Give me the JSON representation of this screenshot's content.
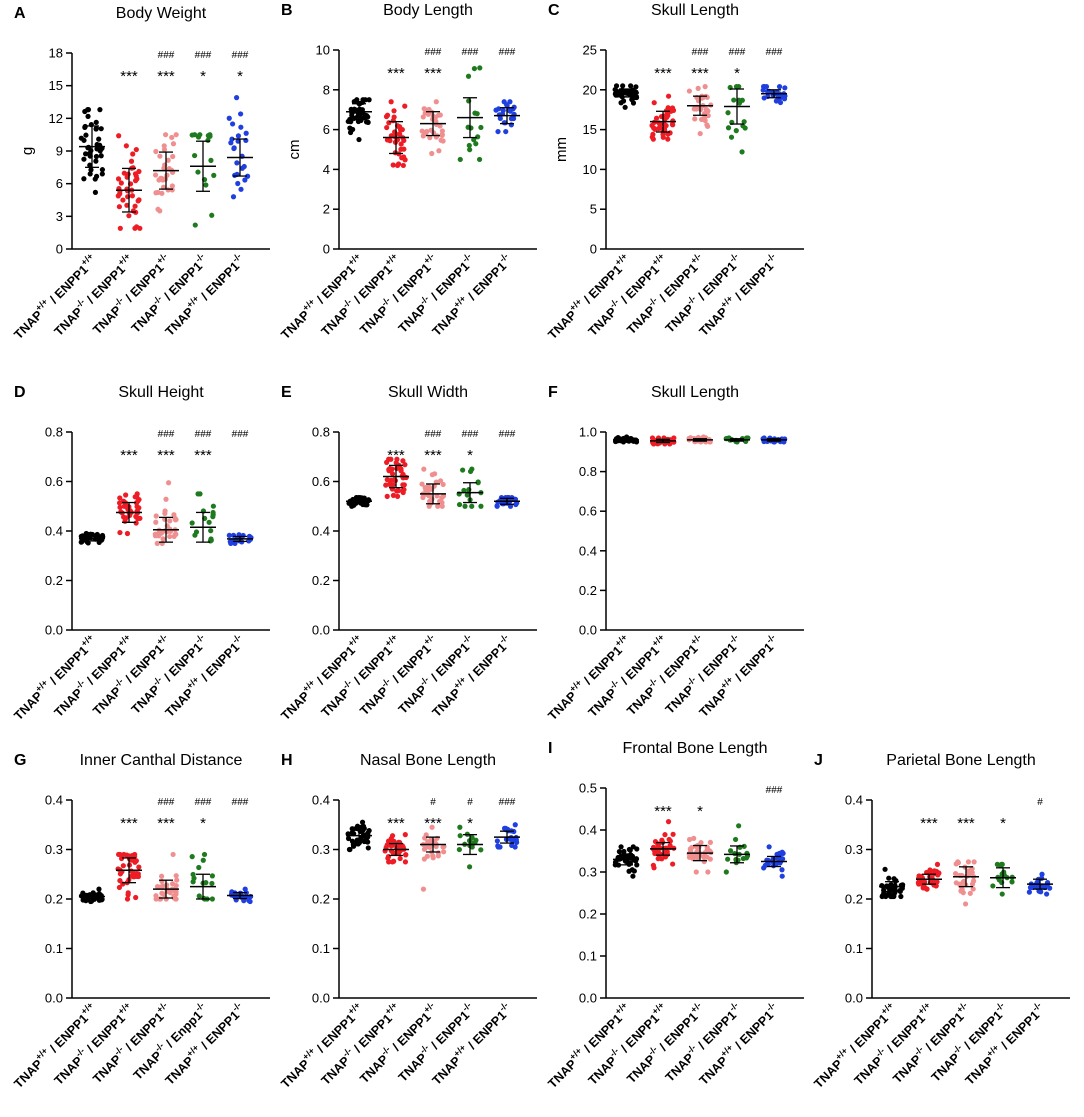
{
  "figure": {
    "group_colors": [
      "#000000",
      "#ee1c24",
      "#f08f8f",
      "#1f7a1f",
      "#1f3fe0"
    ],
    "group_labels": [
      {
        "base": "TNAP",
        "sup1": "+/+",
        "mid": "/ ENPP1",
        "sup2": "+/+"
      },
      {
        "base": "TNAP",
        "sup1": "-/-",
        "mid": "/ ENPP1",
        "sup2": "+/+"
      },
      {
        "base": "TNAP",
        "sup1": "-/-",
        "mid": "/ ENPP1",
        "sup2": "+/-"
      },
      {
        "base": "TNAP",
        "sup1": "-/-",
        "mid": "/ ENPP1",
        "sup2": "-/-"
      },
      {
        "base": "TNAP",
        "sup1": "+/+",
        "mid": "/ ENPP1",
        "sup2": "-/-"
      }
    ],
    "panel_G_label_4_mid": "/ Enpp1"
  },
  "chart_data": [
    {
      "type": "scatter",
      "letter": "A",
      "title": "Body Weight",
      "ylabel": "g",
      "ylim": [
        0,
        18
      ],
      "yticks": [
        "0",
        "3",
        "6",
        "9",
        "12",
        "15",
        "18"
      ],
      "means": [
        9.4,
        5.4,
        7.2,
        7.6,
        8.4
      ],
      "sds": [
        1.9,
        2.0,
        1.7,
        2.3,
        1.7
      ],
      "mins": [
        5.2,
        1.9,
        3.5,
        2.2,
        4.8
      ],
      "maxs": [
        12.8,
        10.4,
        10.5,
        10.5,
        13.9
      ],
      "ns": [
        40,
        40,
        32,
        16,
        24
      ],
      "stars": [
        "",
        "***",
        "***",
        "*",
        "*"
      ],
      "hashes": [
        "",
        "",
        "###",
        "###",
        "###"
      ]
    },
    {
      "type": "scatter",
      "letter": "B",
      "title": "Body Length",
      "ylabel": "cm",
      "ylim": [
        0,
        10
      ],
      "yticks": [
        "0",
        "2",
        "4",
        "6",
        "8",
        "10"
      ],
      "means": [
        6.9,
        5.6,
        6.3,
        6.6,
        6.7
      ],
      "sds": [
        0.4,
        0.8,
        0.6,
        1.0,
        0.4
      ],
      "mins": [
        5.5,
        4.2,
        4.8,
        4.5,
        5.9
      ],
      "maxs": [
        7.5,
        7.4,
        7.4,
        9.1,
        7.4
      ],
      "ns": [
        40,
        40,
        32,
        16,
        24
      ],
      "stars": [
        "",
        "***",
        "***",
        "",
        ""
      ],
      "hashes": [
        "",
        "",
        "###",
        "###",
        "###"
      ]
    },
    {
      "type": "scatter",
      "letter": "C",
      "title": "Skull Length",
      "ylabel": "mm",
      "ylim": [
        0,
        25
      ],
      "yticks": [
        "0",
        "5",
        "10",
        "15",
        "20",
        "25"
      ],
      "means": [
        19.6,
        16.0,
        18.0,
        17.9,
        19.5
      ],
      "sds": [
        0.5,
        1.3,
        1.2,
        2.2,
        0.5
      ],
      "mins": [
        17.8,
        13.8,
        14.5,
        12.2,
        18.4
      ],
      "maxs": [
        20.5,
        19.2,
        20.4,
        20.4,
        20.4
      ],
      "ns": [
        40,
        40,
        32,
        16,
        24
      ],
      "stars": [
        "",
        "***",
        "***",
        "*",
        ""
      ],
      "hashes": [
        "",
        "",
        "###",
        "###",
        "###"
      ]
    },
    {
      "type": "scatter",
      "letter": "D",
      "title": "Skull Height",
      "ylabel": "",
      "ylim": [
        0,
        0.8
      ],
      "yticks": [
        "0.0",
        "0.2",
        "0.4",
        "0.6",
        "0.8"
      ],
      "means": [
        0.37,
        0.475,
        0.405,
        0.415,
        0.368
      ],
      "sds": [
        0.01,
        0.04,
        0.05,
        0.06,
        0.01
      ],
      "mins": [
        0.352,
        0.39,
        0.35,
        0.36,
        0.35
      ],
      "maxs": [
        0.39,
        0.55,
        0.595,
        0.55,
        0.385
      ],
      "ns": [
        40,
        40,
        32,
        16,
        24
      ],
      "stars": [
        "",
        "***",
        "***",
        "***",
        ""
      ],
      "hashes": [
        "",
        "",
        "###",
        "###",
        "###"
      ]
    },
    {
      "type": "scatter",
      "letter": "E",
      "title": "Skull Width",
      "ylabel": "",
      "ylim": [
        0,
        0.8
      ],
      "yticks": [
        "0.0",
        "0.2",
        "0.4",
        "0.6",
        "0.8"
      ],
      "means": [
        0.52,
        0.62,
        0.55,
        0.555,
        0.52
      ],
      "sds": [
        0.01,
        0.045,
        0.04,
        0.04,
        0.012
      ],
      "mins": [
        0.5,
        0.54,
        0.5,
        0.5,
        0.5
      ],
      "maxs": [
        0.535,
        0.69,
        0.65,
        0.65,
        0.535
      ],
      "ns": [
        40,
        40,
        32,
        16,
        24
      ],
      "stars": [
        "",
        "***",
        "***",
        "*",
        ""
      ],
      "hashes": [
        "",
        "",
        "###",
        "###",
        "###"
      ]
    },
    {
      "type": "scatter",
      "letter": "F",
      "title": "Skull Length",
      "ylabel": "",
      "ylim": [
        0,
        1.0
      ],
      "yticks": [
        "0.0",
        "0.2",
        "0.4",
        "0.6",
        "0.8",
        "1.0"
      ],
      "means": [
        0.96,
        0.955,
        0.96,
        0.96,
        0.96
      ],
      "sds": [
        0.006,
        0.008,
        0.006,
        0.006,
        0.006
      ],
      "mins": [
        0.95,
        0.94,
        0.95,
        0.95,
        0.95
      ],
      "maxs": [
        0.975,
        0.97,
        0.975,
        0.97,
        0.97
      ],
      "ns": [
        40,
        40,
        32,
        16,
        24
      ],
      "stars": [
        "",
        "",
        "",
        "",
        ""
      ],
      "hashes": [
        "",
        "",
        "",
        "",
        ""
      ]
    },
    {
      "type": "scatter",
      "letter": "G",
      "title": "Inner Canthal Distance",
      "ylabel": "",
      "ylim": [
        0,
        0.4
      ],
      "yticks": [
        "0.0",
        "0.1",
        "0.2",
        "0.3",
        "0.4"
      ],
      "means": [
        0.205,
        0.258,
        0.22,
        0.225,
        0.207
      ],
      "sds": [
        0.006,
        0.025,
        0.018,
        0.025,
        0.006
      ],
      "mins": [
        0.195,
        0.2,
        0.2,
        0.2,
        0.195
      ],
      "maxs": [
        0.22,
        0.29,
        0.29,
        0.29,
        0.22
      ],
      "ns": [
        40,
        40,
        32,
        16,
        24
      ],
      "stars": [
        "",
        "***",
        "***",
        "*",
        ""
      ],
      "hashes": [
        "",
        "",
        "###",
        "###",
        "###"
      ]
    },
    {
      "type": "scatter",
      "letter": "H",
      "title": "Nasal Bone Length",
      "ylabel": "",
      "ylim": [
        0,
        0.4
      ],
      "yticks": [
        "0.0",
        "0.1",
        "0.2",
        "0.3",
        "0.4"
      ],
      "means": [
        0.328,
        0.3,
        0.31,
        0.31,
        0.325
      ],
      "sds": [
        0.013,
        0.012,
        0.015,
        0.02,
        0.012
      ],
      "mins": [
        0.3,
        0.275,
        0.22,
        0.265,
        0.305
      ],
      "maxs": [
        0.355,
        0.33,
        0.345,
        0.345,
        0.35
      ],
      "ns": [
        40,
        40,
        32,
        16,
        24
      ],
      "stars": [
        "",
        "***",
        "***",
        "*",
        ""
      ],
      "hashes": [
        "",
        "",
        "#",
        "#",
        "###"
      ]
    },
    {
      "type": "scatter",
      "letter": "I",
      "title": "Frontal Bone Length",
      "ylabel": "",
      "ylim": [
        0,
        0.5
      ],
      "yticks": [
        "0.0",
        "0.1",
        "0.2",
        "0.3",
        "0.4",
        "0.5"
      ],
      "means": [
        0.33,
        0.355,
        0.345,
        0.342,
        0.325
      ],
      "sds": [
        0.013,
        0.015,
        0.018,
        0.02,
        0.012
      ],
      "mins": [
        0.29,
        0.31,
        0.3,
        0.3,
        0.29
      ],
      "maxs": [
        0.36,
        0.42,
        0.38,
        0.41,
        0.36
      ],
      "ns": [
        40,
        40,
        32,
        16,
        24
      ],
      "stars": [
        "",
        "***",
        "*",
        "",
        ""
      ],
      "hashes": [
        "",
        "",
        "",
        "",
        "###"
      ]
    },
    {
      "type": "scatter",
      "letter": "J",
      "title": "Parietal Bone Length",
      "ylabel": "",
      "ylim": [
        0,
        0.4
      ],
      "yticks": [
        "0.0",
        "0.1",
        "0.2",
        "0.3",
        "0.4"
      ],
      "means": [
        0.225,
        0.24,
        0.245,
        0.243,
        0.23
      ],
      "sds": [
        0.01,
        0.01,
        0.02,
        0.02,
        0.01
      ],
      "mins": [
        0.205,
        0.22,
        0.19,
        0.21,
        0.21
      ],
      "maxs": [
        0.26,
        0.27,
        0.275,
        0.27,
        0.25
      ],
      "ns": [
        40,
        40,
        32,
        16,
        24
      ],
      "stars": [
        "",
        "***",
        "***",
        "*",
        ""
      ],
      "hashes": [
        "",
        "",
        "",
        "",
        "#"
      ]
    }
  ]
}
